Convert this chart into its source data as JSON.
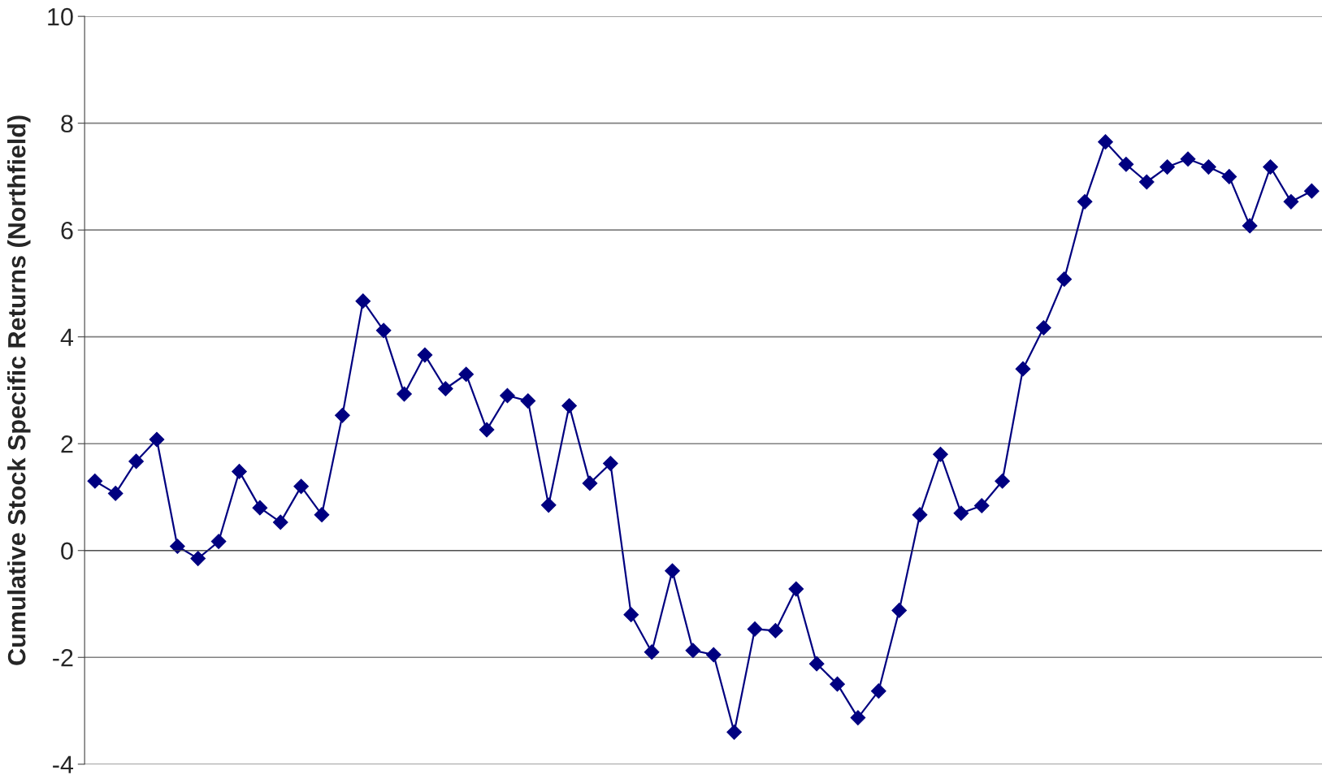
{
  "chart_data": {
    "type": "line",
    "ylabel": "Cumulative Stock Specific Returns (Northfield)",
    "categories": [
      null,
      null,
      null,
      null,
      null,
      null,
      null,
      null,
      null,
      null,
      null,
      null,
      null,
      null,
      null,
      null,
      null,
      null,
      null,
      null,
      null,
      null,
      null,
      null,
      null,
      null,
      null,
      null,
      null,
      null,
      null,
      null,
      null,
      null,
      null,
      null,
      null,
      null,
      null,
      null,
      null,
      null,
      null,
      null,
      null,
      null,
      null,
      null,
      null,
      null,
      null,
      null,
      null,
      null,
      null,
      null,
      null,
      null,
      null,
      null
    ],
    "series": [
      {
        "color": "#000080",
        "values": [
          1.3,
          1.07,
          1.67,
          2.08,
          0.08,
          -0.15,
          0.17,
          1.48,
          0.8,
          0.53,
          1.2,
          0.67,
          2.53,
          4.67,
          4.12,
          2.93,
          3.66,
          3.03,
          3.3,
          2.26,
          2.9,
          2.8,
          0.85,
          2.71,
          1.26,
          1.63,
          -1.2,
          -1.9,
          -0.38,
          -1.87,
          -1.95,
          -3.4,
          -1.47,
          -1.5,
          -0.72,
          -2.12,
          -2.5,
          -3.13,
          -2.63,
          -1.12,
          0.67,
          1.8,
          0.7,
          0.84,
          1.3,
          3.4,
          4.17,
          5.08,
          6.53,
          7.65,
          7.23,
          6.9,
          7.18,
          7.33,
          7.18,
          7.0,
          6.08,
          7.18,
          6.53,
          6.73
        ]
      }
    ],
    "ylim": [
      -4,
      10
    ],
    "yticks": [
      -4,
      -2,
      0,
      2,
      4,
      6,
      8,
      10
    ],
    "grid": "y",
    "marker": "diamond",
    "line_style": "solid",
    "tick_labels": "y"
  }
}
